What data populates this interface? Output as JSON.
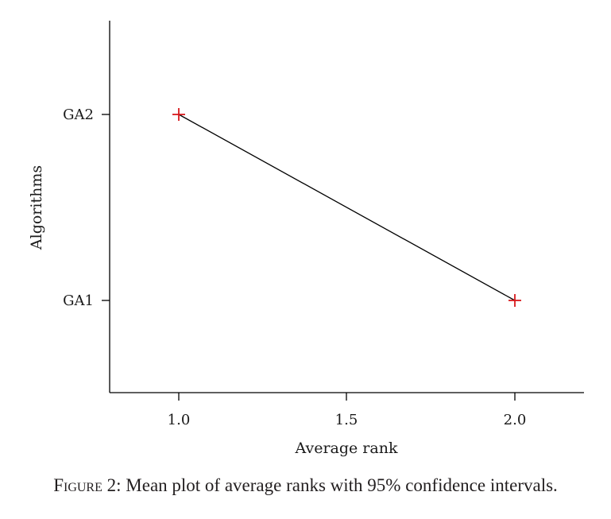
{
  "chart_data": {
    "type": "line",
    "xlabel": "Average rank",
    "ylabel": "Algorithms",
    "categories": [
      "GA1",
      "GA2"
    ],
    "x_ticks": [
      "1.0",
      "1.5",
      "2.0"
    ],
    "xlim": [
      0.8,
      2.2
    ],
    "points": [
      {
        "category": "GA2",
        "x": 1.0
      },
      {
        "category": "GA1",
        "x": 2.0
      }
    ],
    "marker": "plus",
    "marker_color": "#d7191c",
    "line_color": "#000000"
  },
  "caption": {
    "label": "Figure 2:",
    "text": " Mean plot of average ranks with 95% confidence intervals."
  }
}
